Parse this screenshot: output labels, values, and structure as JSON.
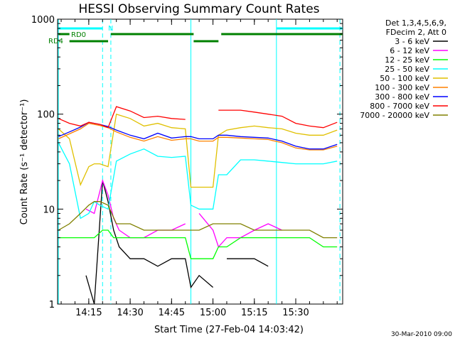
{
  "chart_data": {
    "type": "line",
    "title": "HESSI Observing Summary Count Rates",
    "xlabel": "Start Time (27-Feb-04 14:03:42)",
    "ylabel": "Count Rate (s⁻¹ detector⁻¹)",
    "y_scale": "log",
    "ylim": [
      1,
      1000
    ],
    "xlim": [
      "14:03:42",
      "15:47:00"
    ],
    "x_ticks": [
      "14:15",
      "14:30",
      "14:45",
      "15:00",
      "15:15",
      "15:30"
    ],
    "y_ticks": [
      "1",
      "10",
      "100",
      "1000"
    ],
    "legend": {
      "position": "top-right",
      "header": [
        "Det 1,3,4,5,6,9,",
        "FDecim 2, Att 0"
      ]
    },
    "series": [
      {
        "name": "3 - 6 keV",
        "color": "#000000",
        "x": [
          "14:04",
          "14:10",
          "14:14",
          "14:17",
          "14:20",
          "14:22",
          "14:24",
          "14:26",
          "14:30",
          "14:35",
          "14:40",
          "14:45",
          "14:50",
          "14:52",
          "14:55",
          "15:00",
          "15:02",
          "15:05",
          "15:10",
          "15:15",
          "15:20",
          "15:25",
          "15:30",
          "15:35",
          "15:40",
          "15:45"
        ],
        "values": [
          null,
          null,
          2,
          1,
          20,
          12,
          6,
          4,
          3,
          3,
          2.5,
          3,
          3,
          1.5,
          2,
          1.5,
          null,
          3,
          3,
          3,
          2.5,
          null,
          null,
          null,
          null,
          null
        ]
      },
      {
        "name": "6 - 12 keV",
        "color": "#ff00ff",
        "x": [
          "14:04",
          "14:10",
          "14:14",
          "14:17",
          "14:20",
          "14:22",
          "14:24",
          "14:26",
          "14:30",
          "14:35",
          "14:40",
          "14:45",
          "14:50",
          "14:52",
          "14:55",
          "15:00",
          "15:02",
          "15:05",
          "15:10",
          "15:15",
          "15:20",
          "15:25",
          "15:30",
          "15:35",
          "15:40",
          "15:45"
        ],
        "values": [
          null,
          null,
          10,
          9,
          20,
          14,
          8,
          6,
          5,
          5,
          6,
          6,
          7,
          null,
          9,
          6,
          4,
          5,
          5,
          6,
          7,
          6,
          null,
          null,
          null,
          null
        ]
      },
      {
        "name": "12 - 25 keV",
        "color": "#00ff00",
        "x": [
          "14:04",
          "14:10",
          "14:14",
          "14:17",
          "14:20",
          "14:22",
          "14:24",
          "14:26",
          "14:30",
          "14:35",
          "14:40",
          "14:45",
          "14:50",
          "14:52",
          "14:55",
          "15:00",
          "15:02",
          "15:05",
          "15:10",
          "15:15",
          "15:20",
          "15:25",
          "15:30",
          "15:35",
          "15:40",
          "15:45"
        ],
        "values": [
          5,
          5,
          5,
          5,
          6,
          6,
          5,
          5,
          5,
          5,
          5,
          5,
          5,
          3,
          3,
          3,
          4,
          4,
          5,
          5,
          5,
          5,
          5,
          5,
          4,
          4
        ]
      },
      {
        "name": "25 - 50 keV",
        "color": "#00ffff",
        "x": [
          "14:04",
          "14:08",
          "14:12",
          "14:15",
          "14:17",
          "14:19",
          "14:22",
          "14:25",
          "14:30",
          "14:35",
          "14:40",
          "14:45",
          "14:50",
          "14:52",
          "14:55",
          "15:00",
          "15:02",
          "15:05",
          "15:10",
          "15:15",
          "15:20",
          "15:25",
          "15:30",
          "15:35",
          "15:40",
          "15:45"
        ],
        "values": [
          50,
          30,
          8,
          9,
          12,
          11,
          10,
          32,
          38,
          43,
          36,
          35,
          36,
          11,
          10,
          10,
          23,
          23,
          33,
          33,
          32,
          31,
          30,
          30,
          30,
          32
        ]
      },
      {
        "name": "50 - 100 keV",
        "color": "#e0c000",
        "x": [
          "14:04",
          "14:08",
          "14:12",
          "14:15",
          "14:17",
          "14:19",
          "14:22",
          "14:25",
          "14:30",
          "14:35",
          "14:40",
          "14:45",
          "14:50",
          "14:52",
          "14:55",
          "15:00",
          "15:02",
          "15:05",
          "15:10",
          "15:15",
          "15:20",
          "15:25",
          "15:30",
          "15:35",
          "15:40",
          "15:45"
        ],
        "values": [
          70,
          55,
          18,
          28,
          30,
          30,
          28,
          100,
          90,
          75,
          80,
          72,
          70,
          17,
          17,
          17,
          60,
          68,
          72,
          75,
          72,
          70,
          63,
          60,
          60,
          68
        ]
      },
      {
        "name": "100 - 300 keV",
        "color": "#ff8000",
        "x": [
          "14:04",
          "14:08",
          "14:12",
          "14:15",
          "14:17",
          "14:19",
          "14:22",
          "14:25",
          "14:30",
          "14:35",
          "14:40",
          "14:45",
          "14:50",
          "14:52",
          "14:55",
          "15:00",
          "15:02",
          "15:05",
          "15:10",
          "15:15",
          "15:20",
          "15:25",
          "15:30",
          "15:35",
          "15:40",
          "15:45"
        ],
        "values": [
          55,
          62,
          70,
          80,
          78,
          76,
          72,
          65,
          57,
          52,
          58,
          53,
          55,
          55,
          52,
          52,
          57,
          57,
          56,
          55,
          54,
          50,
          44,
          42,
          42,
          46
        ]
      },
      {
        "name": "300 - 800 keV",
        "color": "#0000ff",
        "x": [
          "14:04",
          "14:08",
          "14:12",
          "14:15",
          "14:17",
          "14:19",
          "14:22",
          "14:25",
          "14:30",
          "14:35",
          "14:40",
          "14:45",
          "14:50",
          "14:52",
          "14:55",
          "15:00",
          "15:02",
          "15:05",
          "15:10",
          "15:15",
          "15:20",
          "15:25",
          "15:30",
          "15:35",
          "15:40",
          "15:45"
        ],
        "values": [
          58,
          65,
          73,
          82,
          80,
          78,
          74,
          68,
          60,
          55,
          63,
          56,
          58,
          58,
          55,
          55,
          60,
          60,
          58,
          57,
          56,
          52,
          46,
          43,
          43,
          48
        ]
      },
      {
        "name": "800 - 7000 keV",
        "color": "#ff0000",
        "x": [
          "14:04",
          "14:08",
          "14:12",
          "14:15",
          "14:17",
          "14:19",
          "14:22",
          "14:25",
          "14:30",
          "14:35",
          "14:40",
          "14:45",
          "14:50",
          "14:52",
          "14:55",
          "15:00",
          "15:02",
          "15:05",
          "15:10",
          "15:15",
          "15:20",
          "15:25",
          "15:30",
          "15:35",
          "15:40",
          "15:45"
        ],
        "values": [
          90,
          80,
          75,
          82,
          80,
          78,
          72,
          120,
          108,
          92,
          95,
          90,
          88,
          null,
          null,
          null,
          110,
          110,
          110,
          105,
          100,
          95,
          80,
          75,
          72,
          82
        ]
      },
      {
        "name": "7000 - 20000 keV",
        "color": "#808000",
        "x": [
          "14:04",
          "14:08",
          "14:12",
          "14:15",
          "14:17",
          "14:19",
          "14:22",
          "14:25",
          "14:30",
          "14:35",
          "14:40",
          "14:45",
          "14:50",
          "14:52",
          "14:55",
          "15:00",
          "15:02",
          "15:05",
          "15:10",
          "15:15",
          "15:20",
          "15:25",
          "15:30",
          "15:35",
          "15:40",
          "15:45"
        ],
        "values": [
          6,
          7,
          9,
          11,
          12,
          12,
          11,
          7,
          7,
          6,
          6,
          6,
          6,
          6,
          6,
          7,
          7,
          7,
          7,
          6,
          6,
          6,
          6,
          6,
          5,
          5
        ]
      }
    ],
    "annotations": [
      {
        "text": "RD0",
        "type": "flag-bar"
      },
      {
        "text": "RD4",
        "type": "flag-bar"
      },
      {
        "text": "N",
        "type": "flag-bar"
      }
    ],
    "flag_bars": [
      {
        "label": "N",
        "color": "#00ffff",
        "spans": [
          [
            "14:04",
            "14:20"
          ],
          [
            "15:23",
            "15:47"
          ]
        ]
      },
      {
        "label": "RD0",
        "color": "#008000",
        "spans": [
          [
            "14:04",
            "14:08"
          ],
          [
            "14:23",
            "14:53"
          ],
          [
            "15:03",
            "15:47"
          ]
        ]
      },
      {
        "label": "RD4",
        "color": "#008000",
        "spans": [
          [
            "14:08",
            "14:22"
          ],
          [
            "14:53",
            "15:02"
          ]
        ]
      }
    ],
    "vertical_markers": [
      {
        "x": "14:04",
        "style": "solid",
        "color": "#00ffff"
      },
      {
        "x": "14:20",
        "style": "dashed",
        "color": "#00ffff"
      },
      {
        "x": "14:23",
        "style": "dashed",
        "color": "#00ffff"
      },
      {
        "x": "14:52",
        "style": "solid",
        "color": "#00ffff"
      },
      {
        "x": "15:23",
        "style": "solid",
        "color": "#00ffff"
      },
      {
        "x": "15:46",
        "style": "dashed",
        "color": "#00ffff"
      }
    ]
  },
  "footnote": "30-Mar-2010 09:00"
}
